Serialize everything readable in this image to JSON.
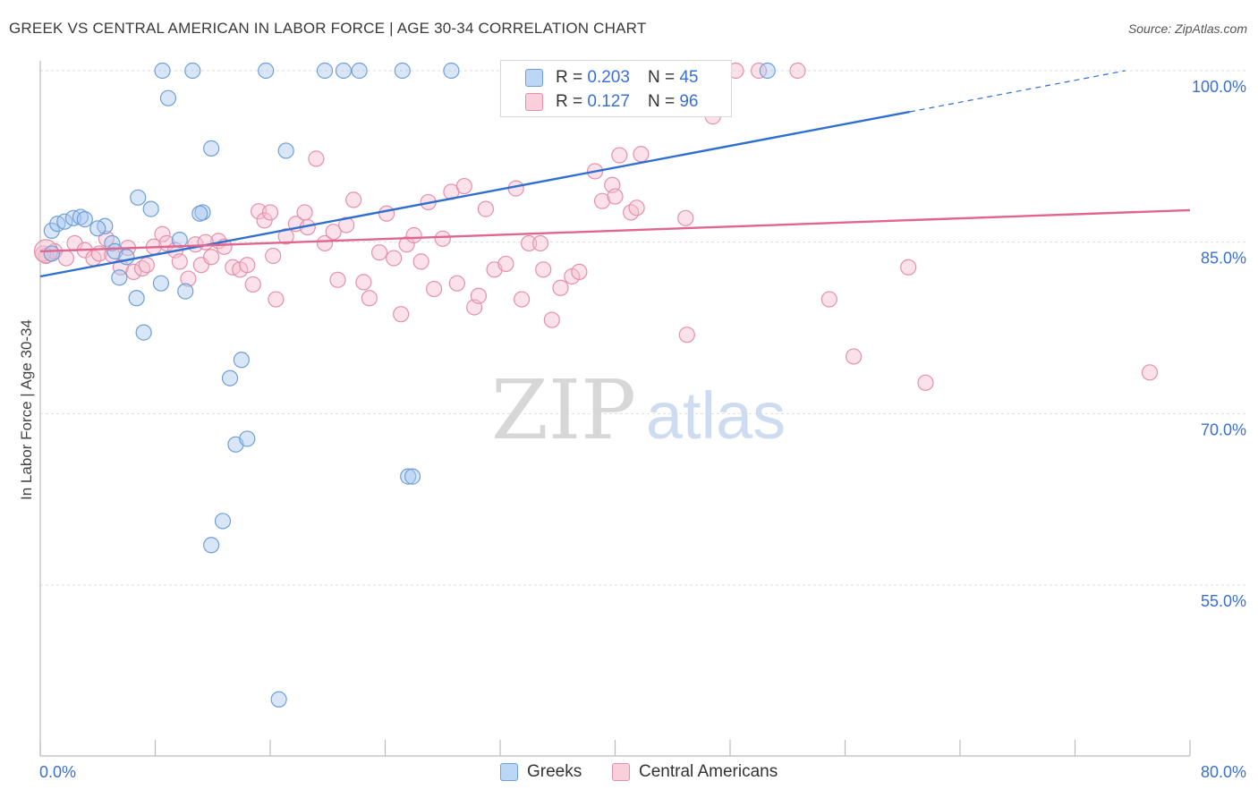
{
  "title": "GREEK VS CENTRAL AMERICAN IN LABOR FORCE | AGE 30-34 CORRELATION CHART",
  "source": "Source: ZipAtlas.com",
  "watermark": {
    "zip": "ZIP",
    "atlas": "atlas"
  },
  "legend": {
    "greeks": {
      "r_label": "R =",
      "r": "0.203",
      "n_label": "N =",
      "n": "45"
    },
    "central": {
      "r_label": "R =",
      "r": "0.127",
      "n_label": "N =",
      "n": "96"
    }
  },
  "colors": {
    "greek_fill": "#a8c8f0",
    "greek_stroke": "#6f9fd8",
    "greek_line": "#2f6fd0",
    "central_fill": "#f6bfd0",
    "central_stroke": "#e590ab",
    "central_line": "#e0658f",
    "tick_label": "#3a6fd8",
    "grid": "#dddddd"
  },
  "chart_data": {
    "type": "scatter",
    "title": "GREEK VS CENTRAL AMERICAN IN LABOR FORCE | AGE 30-34 CORRELATION CHART",
    "xlabel": "",
    "ylabel": "In Labor Force | Age 30-34",
    "xlim": [
      0,
      80
    ],
    "ylim": [
      40,
      101
    ],
    "x_tick_labels": [
      "0.0%",
      "80.0%"
    ],
    "y_ticks": [
      {
        "value": 100,
        "label": "100.0%"
      },
      {
        "value": 85,
        "label": "85.0%"
      },
      {
        "value": 70,
        "label": "70.0%"
      },
      {
        "value": 55,
        "label": "55.0%"
      }
    ],
    "grid": true,
    "legend_position": "top-center",
    "series": [
      {
        "name": "Greeks",
        "r": 0.203,
        "n": 45,
        "trend": {
          "x0": 0,
          "y0": 82.0,
          "x1": 60.5,
          "y1": 96.4,
          "dash_x1": 75.5,
          "dash_y1": 100.0
        },
        "points": [
          [
            0.8,
            86.0
          ],
          [
            1.2,
            86.6
          ],
          [
            1.7,
            86.8
          ],
          [
            2.3,
            87.1
          ],
          [
            2.8,
            87.2
          ],
          [
            3.1,
            87.0
          ],
          [
            4.5,
            86.4
          ],
          [
            4.0,
            86.2
          ],
          [
            5.0,
            84.9
          ],
          [
            5.2,
            84.2
          ],
          [
            6.0,
            83.7
          ],
          [
            5.5,
            81.9
          ],
          [
            6.8,
            88.9
          ],
          [
            7.7,
            87.9
          ],
          [
            6.7,
            80.1
          ],
          [
            7.2,
            77.1
          ],
          [
            8.4,
            81.4
          ],
          [
            9.7,
            85.2
          ],
          [
            10.1,
            80.7
          ],
          [
            11.3,
            87.6
          ],
          [
            11.1,
            87.5
          ],
          [
            11.9,
            93.2
          ],
          [
            13.2,
            73.1
          ],
          [
            14.0,
            74.7
          ],
          [
            13.6,
            67.3
          ],
          [
            14.4,
            67.8
          ],
          [
            12.7,
            60.6
          ],
          [
            11.9,
            58.5
          ],
          [
            17.1,
            93.0
          ],
          [
            16.6,
            45.0
          ],
          [
            8.5,
            100.0
          ],
          [
            8.9,
            97.6
          ],
          [
            10.6,
            100.0
          ],
          [
            15.7,
            100.0
          ],
          [
            19.8,
            100.0
          ],
          [
            21.1,
            100.0
          ],
          [
            22.2,
            100.0
          ],
          [
            25.2,
            100.0
          ],
          [
            28.6,
            100.0
          ],
          [
            32.8,
            100.0
          ],
          [
            43.8,
            100.0
          ],
          [
            50.6,
            100.0
          ],
          [
            25.6,
            64.5
          ],
          [
            25.9,
            64.5
          ],
          [
            0.8,
            84.0
          ]
        ]
      },
      {
        "name": "Central Americans",
        "r": 0.127,
        "n": 96,
        "trend": {
          "x0": 0,
          "y0": 84.2,
          "x1": 80,
          "y1": 87.8
        },
        "points": [
          [
            0.4,
            83.8
          ],
          [
            1.0,
            84.2
          ],
          [
            1.8,
            83.6
          ],
          [
            2.4,
            84.9
          ],
          [
            3.1,
            84.3
          ],
          [
            3.7,
            83.6
          ],
          [
            4.1,
            84.0
          ],
          [
            4.6,
            85.3
          ],
          [
            5.0,
            83.9
          ],
          [
            5.6,
            82.8
          ],
          [
            6.1,
            84.5
          ],
          [
            6.5,
            82.4
          ],
          [
            7.1,
            82.7
          ],
          [
            7.4,
            83.0
          ],
          [
            7.9,
            84.6
          ],
          [
            8.5,
            85.7
          ],
          [
            8.8,
            84.9
          ],
          [
            9.4,
            84.3
          ],
          [
            9.7,
            83.3
          ],
          [
            10.3,
            81.8
          ],
          [
            10.8,
            84.8
          ],
          [
            11.2,
            83.0
          ],
          [
            11.9,
            83.7
          ],
          [
            12.4,
            85.1
          ],
          [
            12.8,
            84.6
          ],
          [
            13.4,
            82.8
          ],
          [
            13.9,
            82.6
          ],
          [
            14.4,
            83.0
          ],
          [
            14.8,
            81.3
          ],
          [
            15.2,
            87.7
          ],
          [
            15.6,
            86.9
          ],
          [
            16.0,
            87.6
          ],
          [
            16.4,
            80.0
          ],
          [
            17.1,
            85.5
          ],
          [
            17.8,
            86.6
          ],
          [
            18.4,
            87.6
          ],
          [
            18.6,
            86.3
          ],
          [
            19.2,
            92.3
          ],
          [
            19.8,
            84.9
          ],
          [
            20.4,
            85.9
          ],
          [
            20.7,
            81.7
          ],
          [
            21.3,
            86.5
          ],
          [
            21.8,
            88.7
          ],
          [
            22.5,
            81.5
          ],
          [
            22.9,
            80.1
          ],
          [
            23.6,
            84.1
          ],
          [
            24.1,
            87.5
          ],
          [
            24.6,
            83.6
          ],
          [
            25.1,
            78.7
          ],
          [
            25.5,
            84.8
          ],
          [
            26.0,
            85.6
          ],
          [
            26.5,
            83.3
          ],
          [
            27.0,
            88.5
          ],
          [
            27.4,
            80.9
          ],
          [
            28.0,
            85.3
          ],
          [
            28.6,
            89.4
          ],
          [
            29.0,
            81.4
          ],
          [
            29.5,
            89.9
          ],
          [
            30.2,
            79.3
          ],
          [
            30.5,
            80.3
          ],
          [
            31.0,
            87.9
          ],
          [
            31.6,
            82.6
          ],
          [
            32.4,
            83.1
          ],
          [
            33.1,
            89.7
          ],
          [
            33.5,
            80.0
          ],
          [
            34.0,
            84.9
          ],
          [
            34.8,
            84.9
          ],
          [
            35.0,
            82.6
          ],
          [
            35.6,
            78.2
          ],
          [
            36.2,
            81.0
          ],
          [
            37.0,
            82.0
          ],
          [
            37.5,
            82.4
          ],
          [
            38.3,
            97.0
          ],
          [
            38.6,
            91.2
          ],
          [
            39.1,
            88.6
          ],
          [
            39.8,
            90.0
          ],
          [
            40.0,
            89.0
          ],
          [
            40.3,
            92.6
          ],
          [
            41.1,
            87.6
          ],
          [
            41.5,
            88.0
          ],
          [
            41.8,
            92.7
          ],
          [
            44.2,
            100.0
          ],
          [
            44.9,
            87.1
          ],
          [
            45.0,
            76.9
          ],
          [
            46.8,
            96.0
          ],
          [
            48.4,
            100.0
          ],
          [
            50.0,
            100.0
          ],
          [
            52.7,
            100.0
          ],
          [
            54.9,
            80.0
          ],
          [
            56.6,
            75.0
          ],
          [
            60.4,
            82.8
          ],
          [
            61.6,
            72.7
          ],
          [
            77.2,
            73.6
          ],
          [
            11.5,
            85.0
          ],
          [
            16.2,
            83.8
          ],
          [
            0.2,
            84.0
          ]
        ]
      }
    ]
  }
}
